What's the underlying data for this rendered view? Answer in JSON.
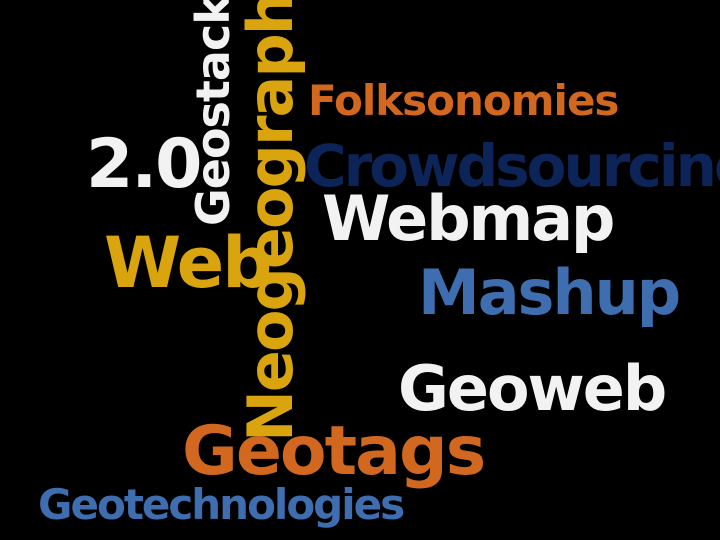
{
  "colors": {
    "background": "#000000",
    "orange": "#d2681f",
    "navy": "#0d2459",
    "white": "#f2f2f2",
    "gold": "#d9a40e",
    "blue": "#3f6eb0"
  },
  "words": {
    "folksonomies": "Folksonomies",
    "crowdsourcing": "Crowdsourcing",
    "two_point_oh": "2.0",
    "geostack": "Geostack",
    "neogeography": "Neogeography",
    "webmap": "Webmap",
    "web": "Web",
    "mashup": "Mashup",
    "geoweb": "Geoweb",
    "geotags": "Geotags",
    "geotechnologies": "Geotechnologies"
  }
}
